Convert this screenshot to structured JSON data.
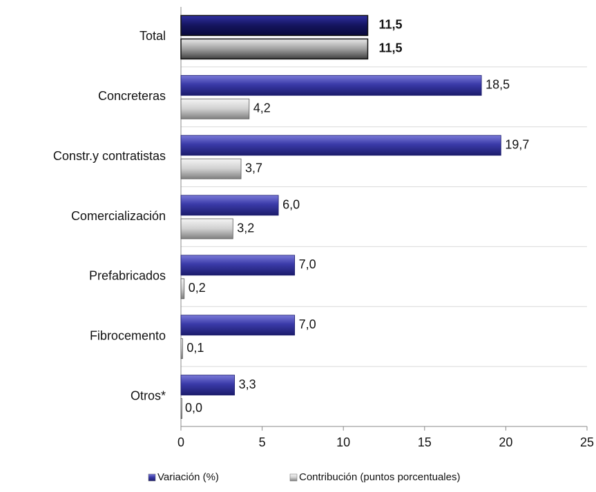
{
  "chart_data": {
    "type": "bar",
    "orientation": "horizontal",
    "categories": [
      "Total",
      "Concreteras",
      "Constr.y contratistas",
      "Comercialización",
      "Prefabricados",
      "Fibrocemento",
      "Otros*"
    ],
    "series": [
      {
        "name": "Variación (%)",
        "color": "#2e2e9a",
        "values": [
          11.5,
          18.5,
          19.7,
          6.0,
          7.0,
          7.0,
          3.3
        ],
        "value_labels": [
          "11,5",
          "18,5",
          "19,7",
          "6,0",
          "7,0",
          "7,0",
          "3,3"
        ]
      },
      {
        "name": "Contribución (puntos porcentuales)",
        "color": "#b8b8b8",
        "values": [
          11.5,
          4.2,
          3.7,
          3.2,
          0.2,
          0.1,
          0.0
        ],
        "value_labels": [
          "11,5",
          "4,2",
          "3,7",
          "3,2",
          "0,2",
          "0,1",
          "0,0"
        ]
      }
    ],
    "xlim": [
      0,
      25
    ],
    "xticks": [
      0,
      5,
      10,
      15,
      20,
      25
    ],
    "legend": "bottom"
  }
}
